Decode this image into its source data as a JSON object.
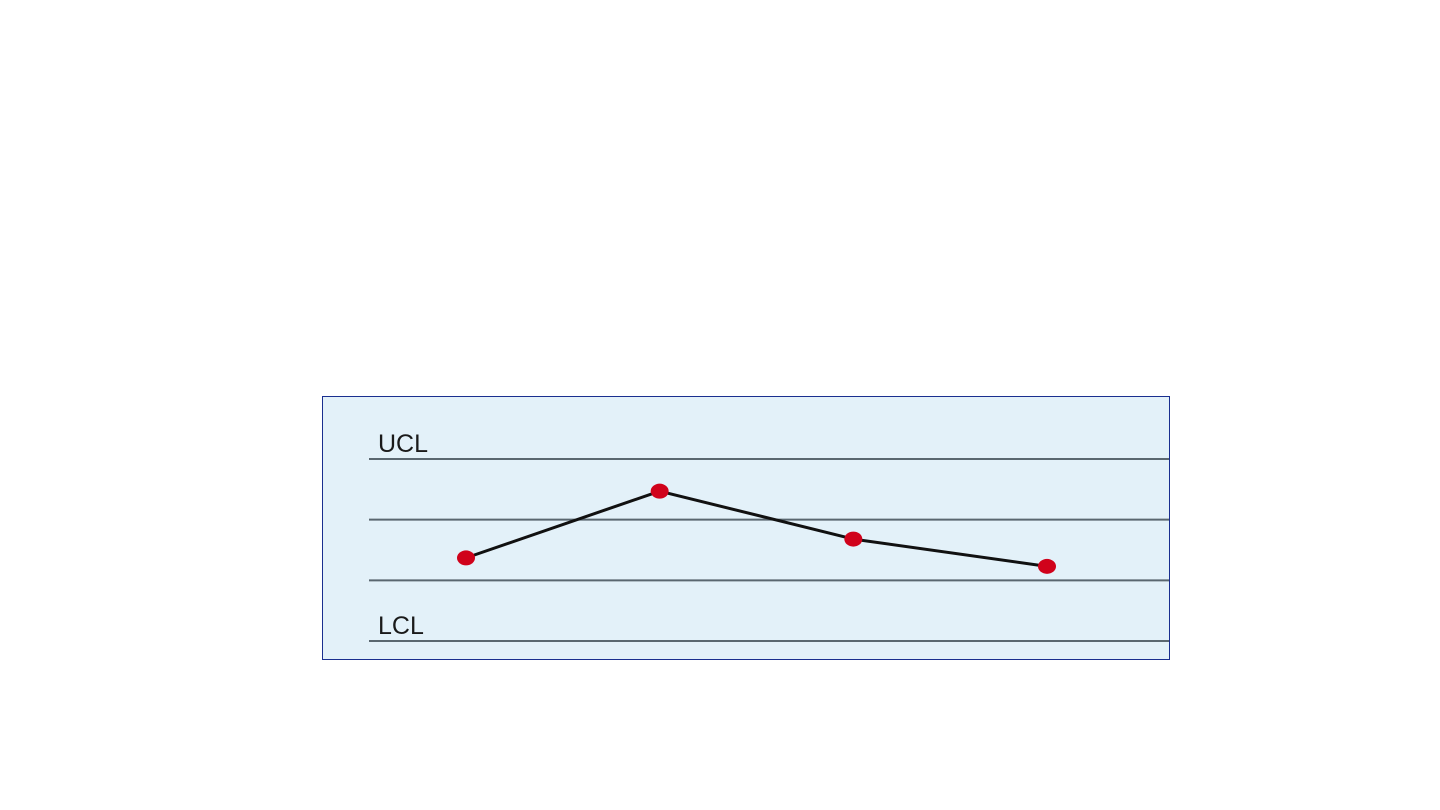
{
  "chart_data": {
    "type": "line",
    "title": "",
    "xlabel": "",
    "ylabel": "",
    "x": [
      1,
      2,
      3,
      4
    ],
    "ylim": [
      0,
      4
    ],
    "grid": false,
    "reference_lines": [
      {
        "label": "UCL",
        "value": 3
      },
      {
        "label": "",
        "value": 2
      },
      {
        "label": "",
        "value": 1
      },
      {
        "label": "LCL",
        "value": 0
      }
    ],
    "series": [
      {
        "values": [
          1.37,
          2.47,
          1.68,
          1.23
        ]
      }
    ]
  },
  "colors": {
    "background": "#e3f1f9",
    "frame": "#1a2f8f",
    "reference_line": "#5a6770",
    "series_line": "#111111",
    "marker": "#d0021b",
    "label_text": "#1a1a1a"
  }
}
